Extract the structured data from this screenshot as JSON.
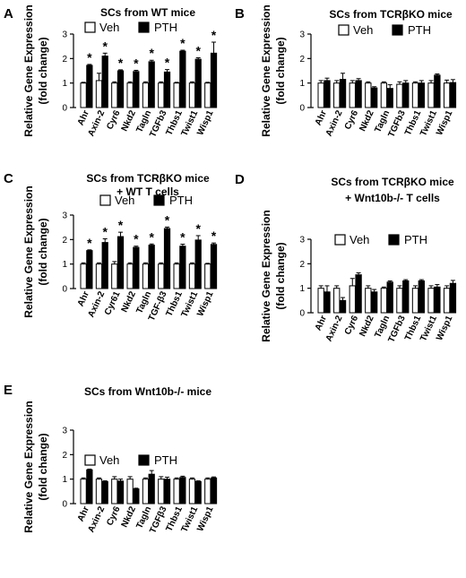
{
  "figure": {
    "ylabel_line1": "Relative Gene Expression",
    "ylabel_line2": "(fold change)",
    "legend_veh": "Veh",
    "legend_pth": "PTH",
    "sig_marker": "*"
  },
  "colors": {
    "veh_fill": "#ffffff",
    "pth_fill": "#000000",
    "stroke": "#000000"
  },
  "chart_data": [
    {
      "type": "bar",
      "panel_letter": "A",
      "title": [
        "SCs from WT mice"
      ],
      "ylim": [
        0,
        3
      ],
      "yticks": [
        0,
        1,
        2,
        3
      ],
      "legend_position": "top-left",
      "categories": [
        "Ahr",
        "Axin-2",
        "Cyr6",
        "Nkd2",
        "Tagln",
        "TGFb3",
        "Thbs1",
        "Twist1",
        "Wisp1"
      ],
      "series": [
        {
          "name": "Veh",
          "values": [
            1.0,
            1.1,
            1.0,
            1.0,
            1.0,
            1.0,
            1.0,
            1.0,
            1.0
          ],
          "errors": [
            0.03,
            0.3,
            0.05,
            0.05,
            0.05,
            0.05,
            0.03,
            0.05,
            0.03
          ]
        },
        {
          "name": "PTH",
          "values": [
            1.72,
            2.1,
            1.5,
            1.47,
            1.87,
            1.45,
            2.3,
            1.97,
            2.22
          ],
          "errors": [
            0.04,
            0.12,
            0.04,
            0.05,
            0.06,
            0.1,
            0.04,
            0.06,
            0.45
          ]
        }
      ],
      "significant": [
        true,
        true,
        true,
        true,
        true,
        true,
        true,
        true,
        true
      ]
    },
    {
      "type": "bar",
      "panel_letter": "B",
      "title": [
        "SCs from TCRβKO mice"
      ],
      "ylim": [
        0,
        3
      ],
      "yticks": [
        0,
        1,
        2,
        3
      ],
      "legend_position": "top-right",
      "categories": [
        "Ahr",
        "Axin-2",
        "Cyr6",
        "Nkd2",
        "Tagln",
        "TGFb3",
        "Thbs1",
        "Twist1",
        "Wisp1"
      ],
      "series": [
        {
          "name": "Veh",
          "values": [
            1.0,
            1.0,
            1.0,
            1.0,
            1.0,
            0.95,
            1.0,
            1.0,
            1.0
          ],
          "errors": [
            0.1,
            0.1,
            0.1,
            0.05,
            0.05,
            0.1,
            0.05,
            0.1,
            0.12
          ]
        },
        {
          "name": "PTH",
          "values": [
            1.1,
            1.15,
            1.1,
            0.8,
            0.78,
            1.0,
            1.0,
            1.32,
            1.02
          ],
          "errors": [
            0.1,
            0.25,
            0.08,
            0.05,
            0.15,
            0.1,
            0.1,
            0.05,
            0.12
          ]
        }
      ],
      "significant": [
        false,
        false,
        false,
        false,
        false,
        false,
        false,
        false,
        false
      ]
    },
    {
      "type": "bar",
      "panel_letter": "C",
      "title": [
        "SCs from TCRβKO mice",
        "+ WT T cells"
      ],
      "ylim": [
        0,
        3
      ],
      "yticks": [
        0,
        1,
        2,
        3
      ],
      "legend_position": "top-left",
      "categories": [
        "Ahr",
        "Axin-2",
        "Cyr61",
        "Nkd2",
        "Tagln",
        "TGF-β3",
        "Thbs1",
        "Twist1",
        "Wisp1"
      ],
      "series": [
        {
          "name": "Veh",
          "values": [
            1.0,
            1.0,
            1.0,
            1.0,
            1.0,
            1.0,
            1.0,
            1.0,
            1.0
          ],
          "errors": [
            0.05,
            0.05,
            0.1,
            0.05,
            0.05,
            0.05,
            0.05,
            0.05,
            0.03
          ]
        },
        {
          "name": "PTH",
          "values": [
            1.55,
            1.88,
            2.12,
            1.68,
            1.77,
            2.45,
            1.73,
            1.98,
            1.8
          ],
          "errors": [
            0.03,
            0.15,
            0.18,
            0.05,
            0.05,
            0.06,
            0.08,
            0.18,
            0.06
          ]
        }
      ],
      "significant": [
        true,
        true,
        true,
        true,
        true,
        true,
        true,
        true,
        true
      ]
    },
    {
      "type": "bar",
      "panel_letter": "D",
      "title": [
        "SCs from TCRβKO mice",
        "+ Wnt10b-/- T cells"
      ],
      "ylim": [
        0,
        3
      ],
      "yticks": [
        0,
        1,
        2,
        3
      ],
      "legend_position": "top-left",
      "categories": [
        "Ahr",
        "Axin-2",
        "Cyr6",
        "Nkd2",
        "Tagln",
        "TGFb3",
        "Thbs1",
        "Twist1",
        "Wisp1"
      ],
      "series": [
        {
          "name": "Veh",
          "values": [
            1.0,
            1.0,
            1.1,
            1.0,
            1.0,
            1.0,
            1.0,
            1.0,
            1.0
          ],
          "errors": [
            0.1,
            0.1,
            0.3,
            0.1,
            0.05,
            0.1,
            0.1,
            0.1,
            0.1
          ]
        },
        {
          "name": "PTH",
          "values": [
            0.85,
            0.5,
            1.55,
            0.85,
            1.25,
            1.3,
            1.3,
            1.05,
            1.2
          ],
          "errors": [
            0.25,
            0.12,
            0.08,
            0.1,
            0.05,
            0.05,
            0.05,
            0.1,
            0.12
          ]
        }
      ],
      "significant": [
        false,
        false,
        false,
        false,
        false,
        false,
        false,
        false,
        false
      ]
    },
    {
      "type": "bar",
      "panel_letter": "E",
      "title": [
        "SCs from Wnt10b-/-  mice"
      ],
      "ylim": [
        0,
        3
      ],
      "yticks": [
        0,
        1,
        2,
        3
      ],
      "legend_position": "top-left",
      "categories": [
        "Ahr",
        "Axin-2",
        "Cyr6",
        "Nkd2",
        "Tagln",
        "TGFβ3",
        "Thbs1",
        "Twist1",
        "Wisp1"
      ],
      "series": [
        {
          "name": "Veh",
          "values": [
            1.0,
            1.0,
            1.0,
            1.0,
            1.0,
            1.0,
            1.0,
            1.0,
            1.0
          ],
          "errors": [
            0.05,
            0.05,
            0.1,
            0.1,
            0.05,
            0.1,
            0.05,
            0.05,
            0.05
          ]
        },
        {
          "name": "PTH",
          "values": [
            1.38,
            0.9,
            0.92,
            0.6,
            1.2,
            1.0,
            1.07,
            0.9,
            1.05
          ],
          "errors": [
            0.03,
            0.03,
            0.08,
            0.03,
            0.15,
            0.08,
            0.05,
            0.03,
            0.04
          ]
        }
      ],
      "significant": [
        false,
        false,
        false,
        false,
        false,
        false,
        false,
        false,
        false
      ]
    }
  ]
}
